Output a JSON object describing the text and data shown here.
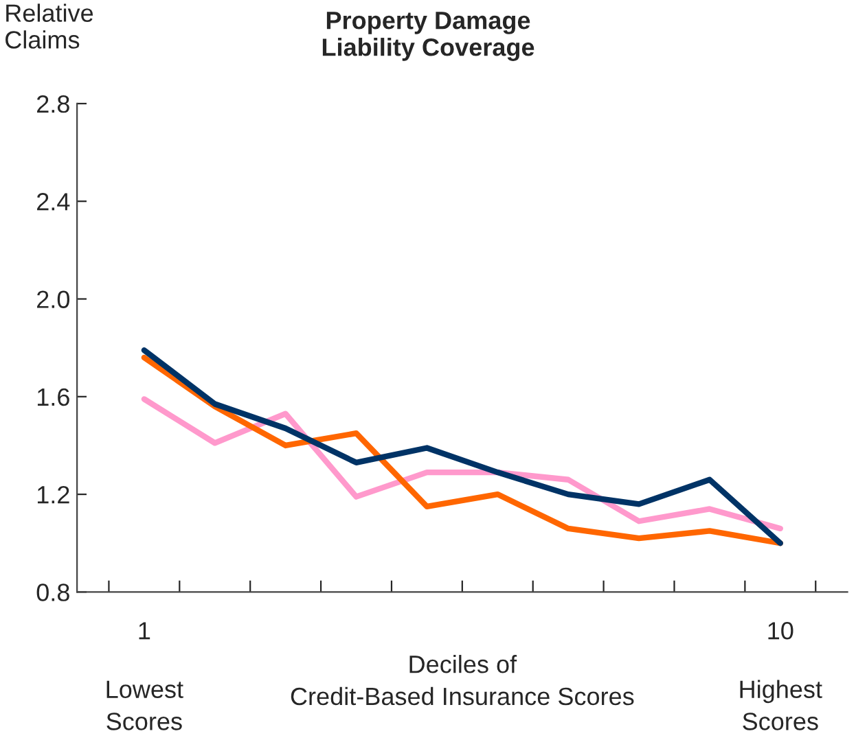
{
  "chart_data": {
    "type": "line",
    "title": "Property Damage\nLiability Coverage",
    "ylabel": "Relative\nClaims",
    "xlabel": "Deciles of\nCredit-Based Insurance Scores",
    "categories": [
      "1",
      null,
      null,
      null,
      null,
      null,
      null,
      null,
      null,
      "10"
    ],
    "series": [
      {
        "color": "#ff99cc",
        "values": [
          1.59,
          1.41,
          1.53,
          1.19,
          1.29,
          1.29,
          1.26,
          1.09,
          1.14,
          1.06
        ]
      },
      {
        "color": "#ff6600",
        "values": [
          1.76,
          1.56,
          1.4,
          1.45,
          1.15,
          1.2,
          1.06,
          1.02,
          1.05,
          1.0
        ]
      },
      {
        "color": "#003366",
        "values": [
          1.79,
          1.57,
          1.47,
          1.33,
          1.39,
          1.29,
          1.2,
          1.16,
          1.26,
          1.0
        ]
      }
    ],
    "ylim": [
      0.8,
      2.8
    ],
    "yticks": [
      {
        "value": 0.8,
        "label": "0.8"
      },
      {
        "value": 1.2,
        "label": "1.2"
      },
      {
        "value": 1.6,
        "label": "1.6"
      },
      {
        "value": 2.0,
        "label": "2.0"
      },
      {
        "value": 2.4,
        "label": "2.4"
      },
      {
        "value": 2.8,
        "label": "2.8"
      }
    ],
    "annotations": [
      "Lowest\nScores",
      "Highest\nScores"
    ],
    "grid": false,
    "marker": "none",
    "line_style": "solid"
  }
}
